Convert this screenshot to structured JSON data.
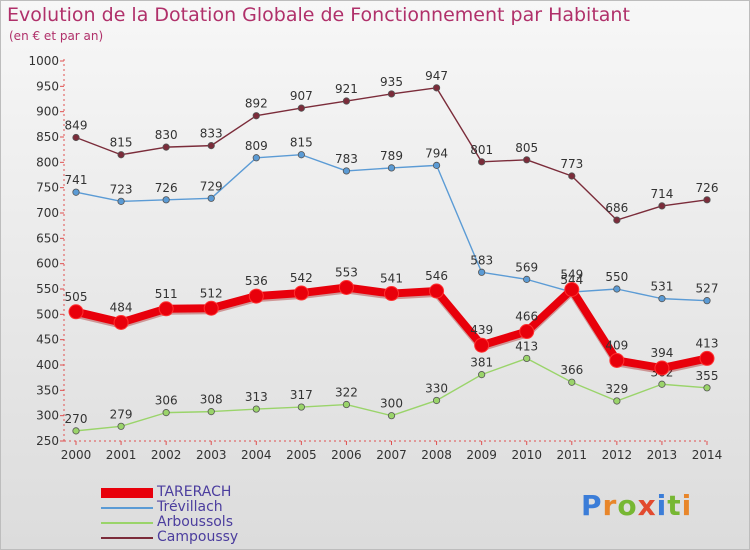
{
  "title": "Evolution de la Dotation Globale de Fonctionnement par Habitant",
  "subtitle": "(en € et par an)",
  "brand": {
    "text": "Proxiti",
    "letters": [
      {
        "ch": "P",
        "color": "#3b7dd8"
      },
      {
        "ch": "r",
        "color": "#e8862a"
      },
      {
        "ch": "o",
        "color": "#77b733"
      },
      {
        "ch": "x",
        "color": "#e24a2f"
      },
      {
        "ch": "i",
        "color": "#3b7dd8"
      },
      {
        "ch": "t",
        "color": "#77b733"
      },
      {
        "ch": "i",
        "color": "#e8862a"
      }
    ]
  },
  "chart_data": {
    "type": "line",
    "x": [
      "2000",
      "2001",
      "2002",
      "2003",
      "2004",
      "2005",
      "2006",
      "2007",
      "2008",
      "2009",
      "2010",
      "2011",
      "2012",
      "2013",
      "2014"
    ],
    "ylim": [
      250,
      1000
    ],
    "yticks": [
      "250",
      "300",
      "350",
      "400",
      "450",
      "500",
      "550",
      "600",
      "650",
      "700",
      "750",
      "800",
      "850",
      "900",
      "950",
      "1000"
    ],
    "grid": false,
    "legend_position": "bottom-left",
    "series": [
      {
        "name": "TARERACH",
        "color": "#e8000b",
        "values": [
          505,
          484,
          511,
          512,
          536,
          542,
          553,
          541,
          546,
          439,
          466,
          549,
          409,
          394,
          413
        ],
        "labels": [
          "505",
          "484",
          "511",
          "512",
          "536",
          "542",
          "553",
          "541",
          "546",
          "439",
          "466",
          "549",
          "409",
          "394",
          "413"
        ],
        "width": 8,
        "marker": 7,
        "bold": true
      },
      {
        "name": "Trévillach",
        "color": "#5b9bd5",
        "values": [
          741,
          723,
          726,
          729,
          809,
          815,
          783,
          789,
          794,
          583,
          569,
          544,
          550,
          531,
          527
        ],
        "labels": [
          "741",
          "723",
          "726",
          "729",
          "809",
          "815",
          "783",
          "789",
          "794",
          "583",
          "569",
          "544",
          "550",
          "531",
          "527"
        ],
        "width": 1.4,
        "marker": 3.2,
        "bold": false
      },
      {
        "name": "Arboussols",
        "color": "#9ad46a",
        "values": [
          270,
          279,
          306,
          308,
          313,
          317,
          322,
          300,
          330,
          381,
          413,
          366,
          329,
          362,
          355
        ],
        "labels": [
          "270",
          "279",
          "306",
          "308",
          "313",
          "317",
          "322",
          "300",
          "330",
          "381",
          "413",
          "366",
          "329",
          "362",
          "355"
        ],
        "width": 1.4,
        "marker": 3.2,
        "bold": false
      },
      {
        "name": "Campoussy",
        "color": "#7b2c3a",
        "values": [
          849,
          815,
          830,
          833,
          892,
          907,
          921,
          935,
          947,
          801,
          805,
          773,
          686,
          714,
          726
        ],
        "labels": [
          "849",
          "815",
          "830",
          "833",
          "892",
          "907",
          "921",
          "935",
          "947",
          "801",
          "805",
          "773",
          "686",
          "714",
          "726"
        ],
        "width": 1.4,
        "marker": 3.2,
        "bold": false
      }
    ]
  }
}
